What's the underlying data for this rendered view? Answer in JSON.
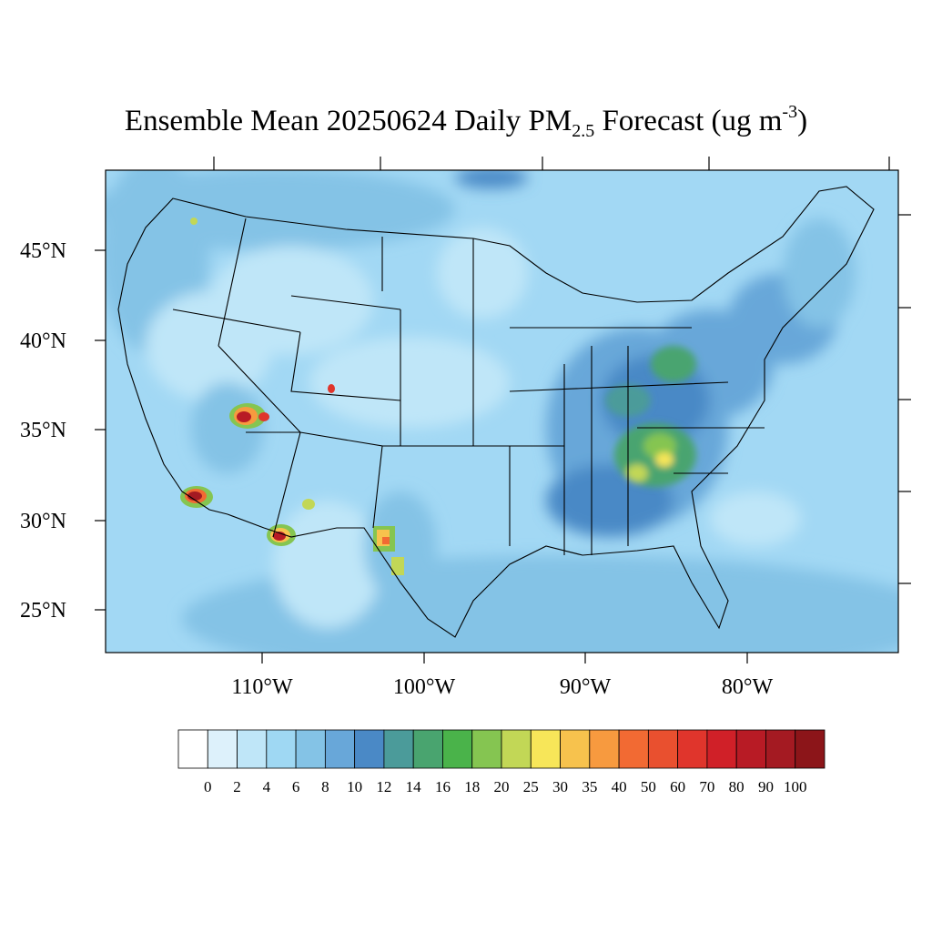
{
  "title": {
    "main": "Ensemble Mean 20250624 Daily PM",
    "sub": "2.5",
    "after": " Forecast (ug m",
    "sup": "-3",
    "close": ")"
  },
  "lat_labels": [
    "45°N",
    "40°N",
    "35°N",
    "30°N",
    "25°N"
  ],
  "lon_labels": [
    "110°W",
    "100°W",
    "90°W",
    "80°W"
  ],
  "colorbar": {
    "labels": [
      "0",
      "2",
      "4",
      "6",
      "8",
      "10",
      "12",
      "14",
      "16",
      "18",
      "20",
      "25",
      "30",
      "35",
      "40",
      "50",
      "60",
      "70",
      "80",
      "90",
      "100"
    ],
    "colors": [
      "#ffffff",
      "#ddf1fb",
      "#bfe6f8",
      "#9fd8f3",
      "#84c3e6",
      "#68a7d9",
      "#4a89c6",
      "#4b9b9a",
      "#49a46f",
      "#4ab34a",
      "#85c551",
      "#c2d756",
      "#f7e659",
      "#f7c24d",
      "#f79a3f",
      "#f26a33",
      "#e9502f",
      "#e0352c",
      "#d02028",
      "#b81b25",
      "#a41a22",
      "#8c1519"
    ]
  },
  "map": {
    "projection": "lambert-conformal",
    "region": "Continental United States",
    "background_color": "#a2d8f4",
    "hotspots": [
      "western wildfire plumes (Nevada/Arizona, southern California, New Mexico, west Texas)",
      "elevated PM2.5 over the Ohio Valley and Southeast"
    ]
  }
}
